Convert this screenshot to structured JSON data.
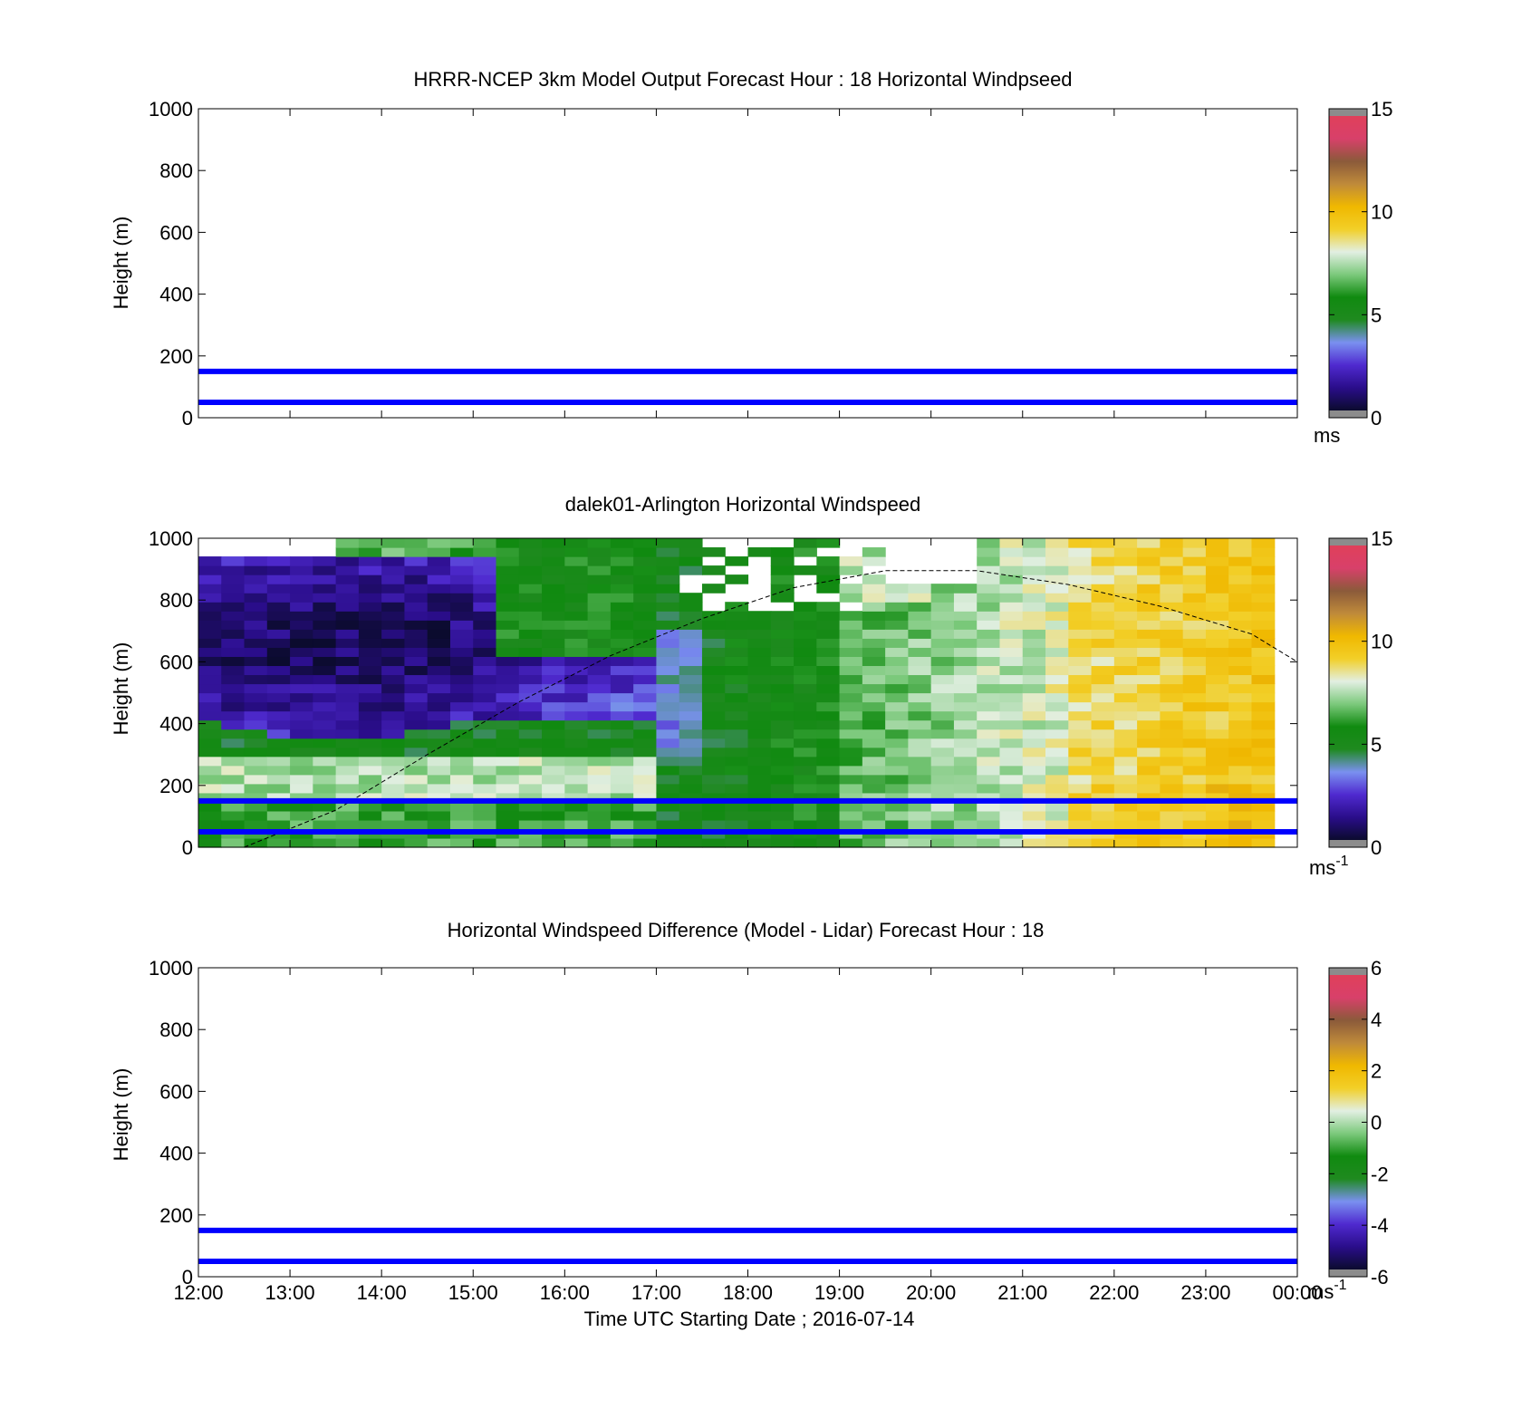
{
  "figure": {
    "xlabel": "Time UTC  Starting Date ; 2016-07-14",
    "x_tick_labels": [
      "12:00",
      "13:00",
      "14:00",
      "15:00",
      "16:00",
      "17:00",
      "18:00",
      "19:00",
      "20:00",
      "21:00",
      "22:00",
      "23:00",
      "00:00"
    ]
  },
  "colorscale": {
    "gray": "#8c8c8c",
    "stops": [
      "#0b0b2e",
      "#2a0d8a",
      "#4f2acf",
      "#7a90f0",
      "#1f8a1f",
      "#108a10",
      "#7cc97c",
      "#e2efe2",
      "#f2cf28",
      "#f0b800",
      "#bf8a3a",
      "#8b5a3a",
      "#d8406a",
      "#e0405a"
    ]
  },
  "chart_data": [
    {
      "type": "heatmap",
      "title": "HRRR-NCEP 3km Model Output   Forecast Hour : 18 Horizontal Windpseed",
      "ylabel": "Height (m)",
      "xlim": [
        "12:00",
        "00:00"
      ],
      "ylim": [
        0,
        1000
      ],
      "y_tick_labels": [
        "0",
        "200",
        "400",
        "600",
        "800",
        "1000"
      ],
      "colorbar": {
        "range": [
          0,
          15
        ],
        "tick_labels": [
          "0",
          "5",
          "10",
          "15"
        ],
        "unit": "ms",
        "unit_sup": ""
      },
      "reference_lines": [
        50,
        150
      ],
      "grid": false
    },
    {
      "type": "heatmap",
      "title": "dalek01-Arlington  Horizontal Windspeed",
      "ylabel": "Height (m)",
      "xlim": [
        "12:00",
        "00:00"
      ],
      "ylim": [
        0,
        1000
      ],
      "y_tick_labels": [
        "0",
        "200",
        "400",
        "600",
        "800",
        "1000"
      ],
      "colorbar": {
        "range": [
          0,
          15
        ],
        "tick_labels": [
          "0",
          "5",
          "10",
          "15"
        ],
        "unit": "ms",
        "unit_sup": "-1"
      },
      "reference_lines": [
        50,
        150
      ],
      "boundary_layer_curve": {
        "x_hours": [
          12.5,
          13.5,
          14.5,
          15.5,
          16.5,
          17.5,
          18.5,
          19.5,
          20.5,
          21.5,
          22.5,
          23.5,
          24.0
        ],
        "height_m": [
          0,
          120,
          300,
          470,
          620,
          740,
          840,
          895,
          895,
          850,
          780,
          690,
          600
        ]
      },
      "grid": false
    },
    {
      "type": "heatmap",
      "title": "Horizontal Windspeed Difference (Model - Lidar) Forecast Hour : 18",
      "ylabel": "Height (m)",
      "xlim": [
        "12:00",
        "00:00"
      ],
      "ylim": [
        0,
        1000
      ],
      "y_tick_labels": [
        "0",
        "200",
        "400",
        "600",
        "800",
        "1000"
      ],
      "colorbar": {
        "range": [
          -6,
          6
        ],
        "tick_labels": [
          "-6",
          "-4",
          "-2",
          "0",
          "2",
          "4",
          "6"
        ],
        "unit": "ms",
        "unit_sup": "-1"
      },
      "reference_lines": [
        50,
        150
      ],
      "grid": false
    }
  ]
}
